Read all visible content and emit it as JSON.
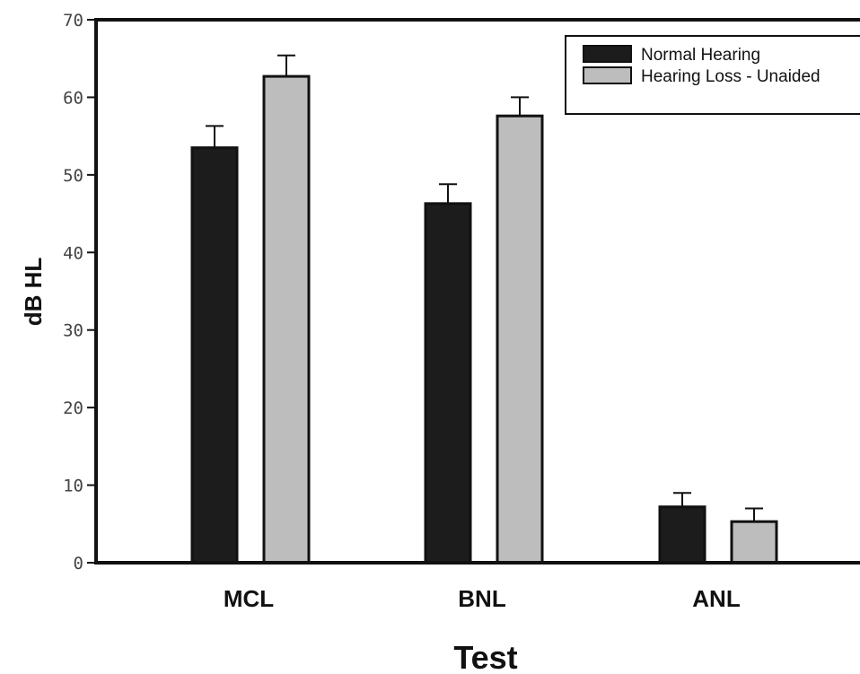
{
  "chart_data": {
    "type": "bar",
    "title": "",
    "xlabel": "Test",
    "ylabel": "dB HL",
    "ylim": [
      0,
      70
    ],
    "yticks": [
      0,
      10,
      20,
      30,
      40,
      50,
      60,
      70
    ],
    "categories": [
      "MCL",
      "BNL",
      "ANL"
    ],
    "series": [
      {
        "name": "Normal Hearing",
        "color": "#1c1c1c",
        "values": [
          53.5,
          46.3,
          7.2
        ],
        "error": [
          2.8,
          2.5,
          1.8
        ]
      },
      {
        "name": "Hearing Loss - Unaided",
        "color": "#bdbdbd",
        "values": [
          62.7,
          57.6,
          5.3
        ],
        "error": [
          2.7,
          2.4,
          1.7
        ]
      }
    ],
    "error_bars": "upper",
    "legend_position": "top-right",
    "grid": false
  }
}
